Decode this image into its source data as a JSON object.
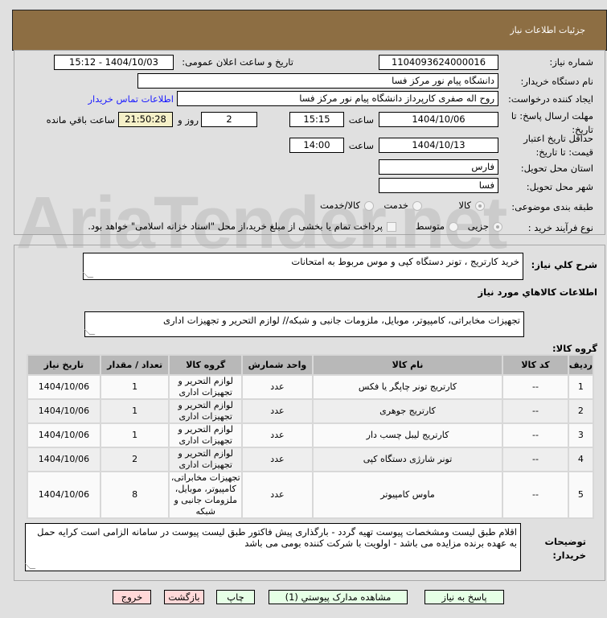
{
  "header": {
    "title": "جزئیات اطلاعات نیاز"
  },
  "form": {
    "need_number_label": "شماره نیاز:",
    "need_number": "1104093624000016",
    "announce_label": "تاریخ و ساعت اعلان عمومی:",
    "announce_value": "1404/10/03 - 15:12",
    "buyer_org_label": "نام دستگاه خریدار:",
    "buyer_org": "دانشگاه پیام نور مرکز فسا",
    "creator_label": "ایجاد کننده درخواست:",
    "creator": "روح اله  صفری کارپرداز دانشگاه پیام نور مرکز فسا",
    "contact_link": "اطلاعات تماس خریدار",
    "deadline_label": "مهلت ارسال پاسخ: تا تاریخ:",
    "deadline_date": "1404/10/06",
    "time_label": "ساعت",
    "deadline_time": "15:15",
    "days": "2",
    "days_label": "روز و",
    "remaining": "21:50:28",
    "remaining_label": "ساعت باقي مانده",
    "validity_label": "حداقل تاریخ اعتبار قیمت: تا تاریخ:",
    "validity_date": "1404/10/13",
    "validity_time": "14:00",
    "province_label": "استان محل تحویل:",
    "province": "فارس",
    "city_label": "شهر محل تحویل:",
    "city": "فسا",
    "category_label": "طبقه بندی موضوعی:",
    "category_options": [
      "کالا",
      "خدمت",
      "کالا/خدمت"
    ],
    "category_selected": "کالا",
    "process_label": "نوع فرآیند خرید :",
    "process_options": [
      "جزیی",
      "متوسط"
    ],
    "process_selected": "جزیی",
    "payment_note": "پرداخت تمام یا بخشی از مبلغ خرید،از محل \"اسناد خزانه اسلامی\" خواهد بود."
  },
  "details": {
    "description_label": "شرح كلي نياز:",
    "description": "خرید کارتریج ، تونر دستگاه کپی و موس مربوط به امتحانات",
    "goods_info_title": "اطلاعات كالاهاي مورد نياز",
    "goods_group_label": "گروه کالا:",
    "goods_group": "تجهیزات مخابراتی، کامپیوتر، موبایل، ملزومات جانبی و شبکه// لوازم التحریر و تجهیزات اداری",
    "table": {
      "columns": [
        "ردیف",
        "کد کالا",
        "نام کالا",
        "واحد شمارش",
        "گروه کالا",
        "تعداد / مقدار",
        "تاریخ نیاز"
      ],
      "rows": [
        [
          "1",
          "--",
          "کارتریج تونر چاپگر یا فکس",
          "عدد",
          "لوازم التحریر و تجهیزات اداری",
          "1",
          "1404/10/06"
        ],
        [
          "2",
          "--",
          "کارتریج جوهری",
          "عدد",
          "لوازم التحریر و تجهیزات اداری",
          "1",
          "1404/10/06"
        ],
        [
          "3",
          "--",
          "کارتریج لیبل چسب دار",
          "عدد",
          "لوازم التحریر و تجهیزات اداری",
          "1",
          "1404/10/06"
        ],
        [
          "4",
          "--",
          "تونر شارژی دستگاه کپی",
          "عدد",
          "لوازم التحریر و تجهیزات اداری",
          "2",
          "1404/10/06"
        ],
        [
          "5",
          "--",
          "ماوس کامپیوتر",
          "عدد",
          "تجهیزات مخابراتی، کامپیوتر، موبایل، ملزومات جانبی و شبکه",
          "8",
          "1404/10/06"
        ]
      ]
    },
    "buyer_notes_label": "توضیحات خریدار:",
    "buyer_notes": "اقلام طبق لیست ومشخصات پیوست تهیه گردد - بارگذاری پیش فاکتور طبق لیست پیوست در سامانه الزامی است کرایه حمل به عهده برنده مزایده می باشد - اولویت با شرکت کننده بومی می باشد"
  },
  "buttons": {
    "reply": "پاسخ به نیاز",
    "attachments": "مشاهده مدارک پیوستي (1)",
    "print": "چاپ",
    "back": "بازگشت",
    "exit": "خروج"
  },
  "watermark": "AriaTender.net",
  "colors": {
    "header": "#8d6e43",
    "link": "#1a1aff",
    "remaining_bg": "#f5f0c8",
    "green_button": "#e6ffe6",
    "red_button": "#ffd8d8"
  }
}
